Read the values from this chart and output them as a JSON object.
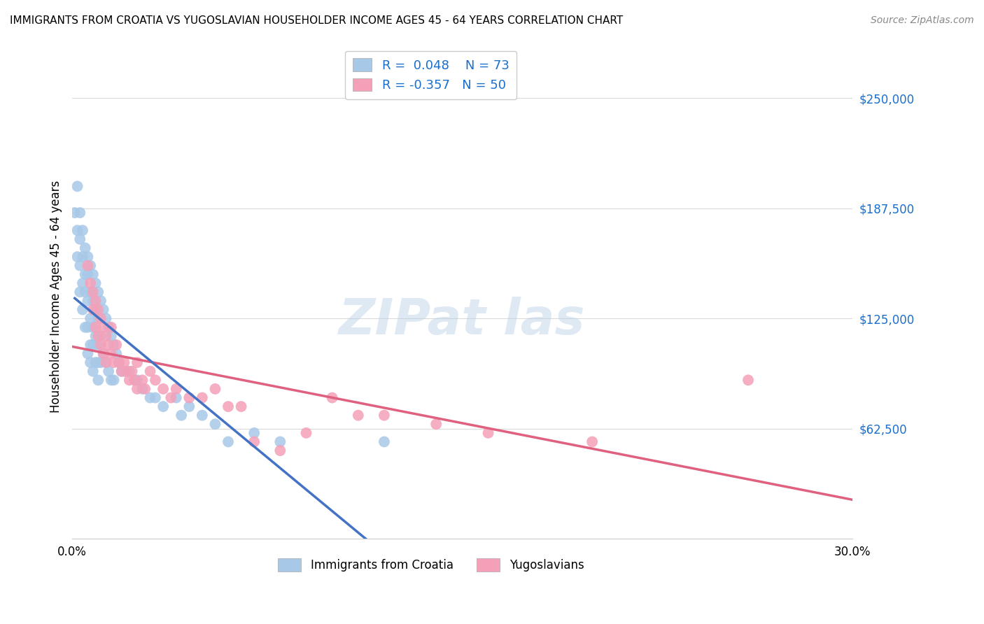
{
  "title": "IMMIGRANTS FROM CROATIA VS YUGOSLAVIAN HOUSEHOLDER INCOME AGES 45 - 64 YEARS CORRELATION CHART",
  "source": "Source: ZipAtlas.com",
  "ylabel": "Householder Income Ages 45 - 64 years",
  "xlim": [
    0.0,
    0.3
  ],
  "ylim": [
    0,
    275000
  ],
  "yticks": [
    62500,
    125000,
    187500,
    250000
  ],
  "ytick_labels": [
    "$62,500",
    "$125,000",
    "$187,500",
    "$250,000"
  ],
  "xticks": [
    0.0,
    0.05,
    0.1,
    0.15,
    0.2,
    0.25,
    0.3
  ],
  "xtick_labels": [
    "0.0%",
    "",
    "",
    "",
    "",
    "",
    "30.0%"
  ],
  "croatia_R": 0.048,
  "croatia_N": 73,
  "yugo_R": -0.357,
  "yugo_N": 50,
  "croatia_color": "#a8c8e8",
  "yugo_color": "#f4a0b8",
  "croatia_line_color": "#4472C4",
  "croatia_dash_color": "#a0b8d8",
  "yugo_line_color": "#e06080",
  "legend_R_color": "#1a6fcc",
  "background_color": "#ffffff",
  "grid_color": "#d0d0d0",
  "croatia_x": [
    0.001,
    0.002,
    0.002,
    0.002,
    0.003,
    0.003,
    0.003,
    0.003,
    0.004,
    0.004,
    0.004,
    0.004,
    0.005,
    0.005,
    0.005,
    0.005,
    0.006,
    0.006,
    0.006,
    0.006,
    0.006,
    0.007,
    0.007,
    0.007,
    0.007,
    0.007,
    0.008,
    0.008,
    0.008,
    0.008,
    0.008,
    0.009,
    0.009,
    0.009,
    0.009,
    0.01,
    0.01,
    0.01,
    0.01,
    0.01,
    0.011,
    0.011,
    0.011,
    0.012,
    0.012,
    0.013,
    0.013,
    0.014,
    0.014,
    0.015,
    0.015,
    0.016,
    0.016,
    0.017,
    0.018,
    0.019,
    0.02,
    0.022,
    0.024,
    0.025,
    0.027,
    0.03,
    0.032,
    0.035,
    0.04,
    0.042,
    0.045,
    0.05,
    0.055,
    0.06,
    0.07,
    0.08,
    0.12
  ],
  "croatia_y": [
    185000,
    200000,
    175000,
    160000,
    185000,
    170000,
    155000,
    140000,
    175000,
    160000,
    145000,
    130000,
    165000,
    150000,
    140000,
    120000,
    160000,
    150000,
    135000,
    120000,
    105000,
    155000,
    140000,
    125000,
    110000,
    100000,
    150000,
    135000,
    120000,
    110000,
    95000,
    145000,
    130000,
    115000,
    100000,
    140000,
    125000,
    110000,
    100000,
    90000,
    135000,
    115000,
    100000,
    130000,
    105000,
    125000,
    100000,
    120000,
    95000,
    115000,
    90000,
    110000,
    90000,
    105000,
    100000,
    95000,
    95000,
    95000,
    90000,
    90000,
    85000,
    80000,
    80000,
    75000,
    80000,
    70000,
    75000,
    70000,
    65000,
    55000,
    60000,
    55000,
    55000
  ],
  "yugo_x": [
    0.006,
    0.007,
    0.008,
    0.008,
    0.009,
    0.009,
    0.01,
    0.01,
    0.011,
    0.011,
    0.012,
    0.012,
    0.013,
    0.013,
    0.014,
    0.015,
    0.015,
    0.016,
    0.017,
    0.018,
    0.019,
    0.02,
    0.021,
    0.022,
    0.023,
    0.024,
    0.025,
    0.025,
    0.027,
    0.028,
    0.03,
    0.032,
    0.035,
    0.038,
    0.04,
    0.045,
    0.05,
    0.055,
    0.06,
    0.065,
    0.07,
    0.08,
    0.09,
    0.1,
    0.11,
    0.12,
    0.14,
    0.16,
    0.2,
    0.26
  ],
  "yugo_y": [
    155000,
    145000,
    140000,
    130000,
    135000,
    120000,
    130000,
    115000,
    125000,
    110000,
    120000,
    105000,
    115000,
    100000,
    110000,
    120000,
    105000,
    100000,
    110000,
    100000,
    95000,
    100000,
    95000,
    90000,
    95000,
    90000,
    100000,
    85000,
    90000,
    85000,
    95000,
    90000,
    85000,
    80000,
    85000,
    80000,
    80000,
    85000,
    75000,
    75000,
    55000,
    50000,
    60000,
    80000,
    70000,
    70000,
    65000,
    60000,
    55000,
    90000
  ]
}
